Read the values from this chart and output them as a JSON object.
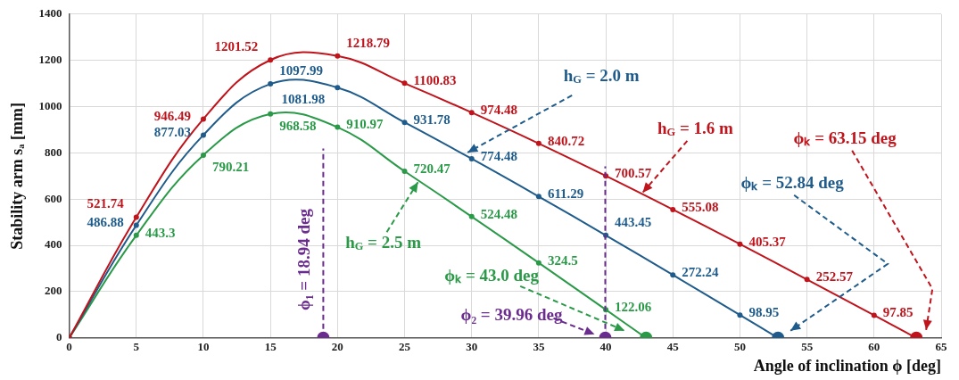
{
  "chart_data": {
    "type": "line",
    "xlabel": "Angle of inclination ϕ [deg]",
    "ylabel": "Stability arm sₐ [mm]",
    "xlim": [
      0,
      65
    ],
    "xticks": [
      0,
      5,
      10,
      15,
      20,
      25,
      30,
      35,
      40,
      45,
      50,
      55,
      60,
      65
    ],
    "ylim": [
      0,
      1400
    ],
    "yticks": [
      0,
      200,
      400,
      600,
      800,
      1000,
      1200,
      1400
    ],
    "grid": true,
    "marker": "circle",
    "line_style": "solid",
    "series": [
      {
        "name": "h$_{G}$ = 1.6 m",
        "color": "#c0141c",
        "x": [
          0,
          5,
          10,
          15,
          20,
          25,
          30,
          35,
          40,
          45,
          50,
          55,
          60,
          63.15
        ],
        "values": [
          0,
          521.74,
          946.49,
          1201.52,
          1218.79,
          1100.83,
          974.48,
          840.72,
          700.57,
          555.08,
          405.37,
          252.57,
          97.85,
          0
        ],
        "value_labels": [
          null,
          "521.74",
          "946.49",
          "1201.52",
          "1218.79",
          "1100.83",
          "974.48",
          "840.72",
          "700.57",
          "555.08",
          "405.37",
          "252.57",
          "97.85",
          null
        ]
      },
      {
        "name": "h$_{G}$ = 2.0 m",
        "color": "#1f5c8b",
        "x": [
          0,
          5,
          10,
          15,
          20,
          25,
          30,
          35,
          40,
          45,
          50,
          52.84
        ],
        "values": [
          0,
          486.88,
          877.03,
          1097.99,
          1081.98,
          931.78,
          774.48,
          611.29,
          443.45,
          272.24,
          98.95,
          0
        ],
        "value_labels": [
          null,
          "486.88",
          "877.03",
          "1097.99",
          "1081.98",
          "931.78",
          "774.48",
          "611.29",
          "443.45",
          "272.24",
          "98.95",
          null
        ]
      },
      {
        "name": "h$_{G}$ = 2.5 m",
        "color": "#2a9a48",
        "x": [
          0,
          5,
          10,
          15,
          20,
          25,
          30,
          35,
          40,
          43.0
        ],
        "values": [
          0,
          443.3,
          790.21,
          968.58,
          910.97,
          720.47,
          524.48,
          324.5,
          122.06,
          0
        ],
        "value_labels": [
          null,
          "443.3",
          "790.21",
          "968.58",
          "910.97",
          "720.47",
          "524.48",
          "324.5",
          "122.06",
          null
        ]
      },
      {
        "type": "scatter",
        "color": "#6b2c8f",
        "x": [
          18.94,
          39.96
        ],
        "values": [
          0,
          0
        ]
      }
    ],
    "ref_lines": [
      {
        "axis": "x",
        "value": 18.94,
        "label": "ϕ₁ = 18.94 deg",
        "color": "#6b2c8f",
        "line_style": "dashed"
      },
      {
        "axis": "x",
        "value": 39.96,
        "label": "ϕ₂ = 39.96 deg",
        "color": "#6b2c8f",
        "line_style": "dashed"
      }
    ],
    "annotations": [
      "ϕₖ = 63.15 deg",
      "ϕₖ = 52.84 deg",
      "ϕₖ = 43.0 deg"
    ]
  }
}
